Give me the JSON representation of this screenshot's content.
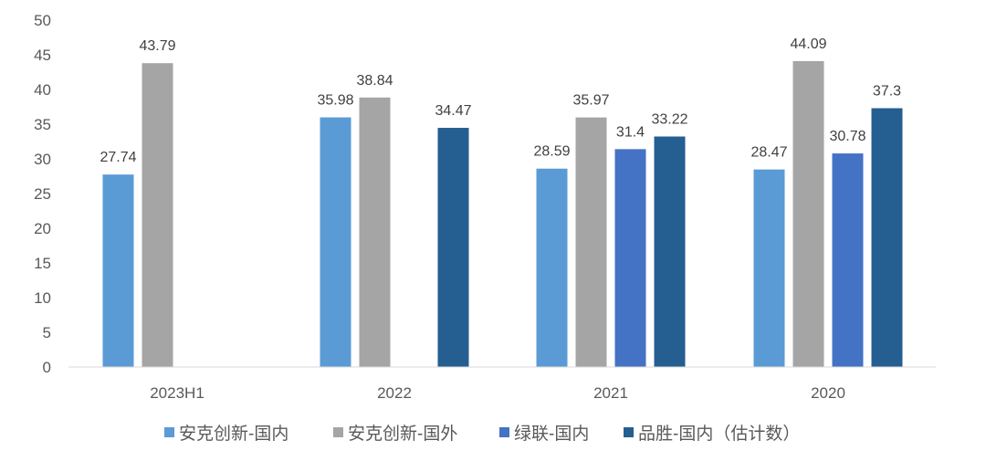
{
  "chart_data": {
    "type": "bar",
    "title": "",
    "xlabel": "",
    "ylabel": "",
    "ylim": [
      0,
      50
    ],
    "yticks": [
      0,
      5,
      10,
      15,
      20,
      25,
      30,
      35,
      40,
      45,
      50
    ],
    "grid": false,
    "legend_position": "bottom",
    "categories": [
      "2023H1",
      "2022",
      "2021",
      "2020"
    ],
    "series": [
      {
        "name": "安克创新-国内",
        "color": "#5B9BD5",
        "values": [
          27.74,
          35.98,
          28.59,
          28.47
        ]
      },
      {
        "name": "安克创新-国外",
        "color": "#A5A5A5",
        "values": [
          43.79,
          38.84,
          35.97,
          44.09
        ]
      },
      {
        "name": "绿联-国内",
        "color": "#4472C4",
        "values": [
          null,
          null,
          31.4,
          30.78
        ]
      },
      {
        "name": "品胜-国内（估计数）",
        "color": "#255E91",
        "values": [
          null,
          34.47,
          33.22,
          37.3
        ]
      }
    ]
  }
}
